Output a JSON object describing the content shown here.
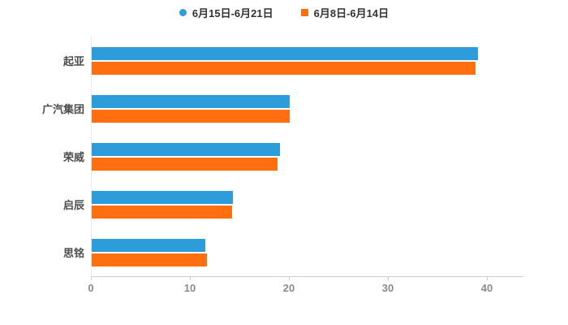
{
  "legend": {
    "items": [
      {
        "label": "6月15日-6月21日",
        "shape": "circle"
      },
      {
        "label": "6月8日-6月14日",
        "shape": "square"
      }
    ]
  },
  "chart_data": {
    "type": "bar",
    "orientation": "horizontal",
    "title": "",
    "xlabel": "",
    "ylabel": "",
    "categories": [
      "起亚",
      "广汽集团",
      "荣威",
      "启辰",
      "思铭"
    ],
    "series": [
      {
        "name": "6月15日-6月21日",
        "color": "#2D9CDB",
        "values": [
          39,
          20,
          19,
          14.3,
          11.5
        ]
      },
      {
        "name": "6月8日-6月14日",
        "color": "#FF6F0F",
        "values": [
          38.8,
          20,
          18.8,
          14.2,
          11.6
        ]
      }
    ],
    "xlim": [
      0,
      40
    ],
    "xticks": [
      0,
      10,
      20,
      30,
      40
    ],
    "grid": false,
    "legend_position": "top"
  }
}
